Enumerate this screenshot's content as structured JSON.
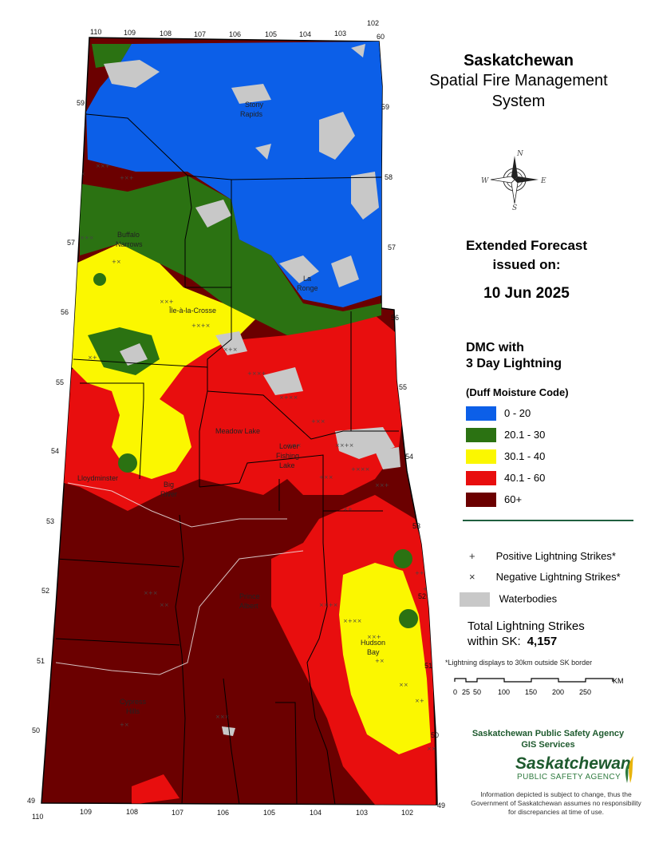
{
  "title": {
    "line1": "Saskatchewan",
    "line2": "Spatial Fire Management",
    "line3": "System"
  },
  "forecast": {
    "line1": "Extended Forecast",
    "line2": "issued on:",
    "date": "10 Jun 2025"
  },
  "legend": {
    "title_line1": "DMC with",
    "title_line2": "3 Day Lightning",
    "subtitle": "(Duff Moisture Code)",
    "classes": [
      {
        "label": "0 - 20",
        "color": "#0c5fe8"
      },
      {
        "label": "20.1 - 30",
        "color": "#2b7212"
      },
      {
        "label": "30.1 - 40",
        "color": "#fbf700"
      },
      {
        "label": "40.1 - 60",
        "color": "#e80e0e"
      },
      {
        "label": "60+",
        "color": "#6b0000"
      }
    ],
    "positive_symbol": "+",
    "positive_label": "Positive Lightning Strikes*",
    "negative_symbol": "×",
    "negative_label": "Negative Lightning Strikes*",
    "water_label": "Waterbodies",
    "water_color": "#c8c8c8"
  },
  "total": {
    "line1": "Total Lightning Strikes",
    "line2": "within SK:",
    "count": "4,157"
  },
  "note": "*Lightning displays to 30km outside SK border",
  "scale": {
    "labels": [
      "0",
      "25",
      "50",
      "100",
      "150",
      "200",
      "250"
    ],
    "unit": "KM"
  },
  "compass": {
    "n": "N",
    "e": "E",
    "s": "S",
    "w": "W"
  },
  "agency": {
    "line1": "Saskatchewan Public Safety Agency",
    "line2": "GIS Services",
    "logo_name": "Saskatchewan",
    "logo_sub": "PUBLIC SAFETY AGENCY"
  },
  "disclaimer": "Information depicted is subject to change, thus the Government of Saskatchewan assumes no responsibility for discrepancies at time of use.",
  "map": {
    "lon_top": [
      "110",
      "109",
      "108",
      "107",
      "106",
      "105",
      "104",
      "103",
      "102"
    ],
    "lon_bottom": [
      "110",
      "109",
      "108",
      "107",
      "106",
      "105",
      "104",
      "103",
      "102"
    ],
    "lat_left": [
      "59",
      "57",
      "56",
      "55",
      "54",
      "53",
      "52",
      "51",
      "50",
      "49"
    ],
    "lat_right": [
      "60",
      "59",
      "58",
      "57",
      "56",
      "55",
      "54",
      "53",
      "52",
      "51",
      "50",
      "49"
    ],
    "places": {
      "stony_rapids_1": "Stony",
      "stony_rapids_2": "Rapids",
      "buffalo_narrows_1": "Buffalo",
      "buffalo_narrows_2": "Narrows",
      "la_ronge_1": "La",
      "la_ronge_2": "Ronge",
      "ile_a_la_crosse_1": "Île-à-la-Crosse",
      "meadow_lake": "Meadow Lake",
      "lloydminster": "Lloydminster",
      "big_river_1": "Big",
      "big_river_2": "River",
      "lower_fishing_lake_1": "Lower",
      "lower_fishing_lake_2": "Fishing",
      "lower_fishing_lake_3": "Lake",
      "prince_albert_1": "Prince",
      "prince_albert_2": "Albert",
      "hudson_bay_1": "Hudson",
      "hudson_bay_2": "Bay",
      "cypress_hills_1": "Cypress",
      "cypress_hills_2": "Hills"
    }
  }
}
